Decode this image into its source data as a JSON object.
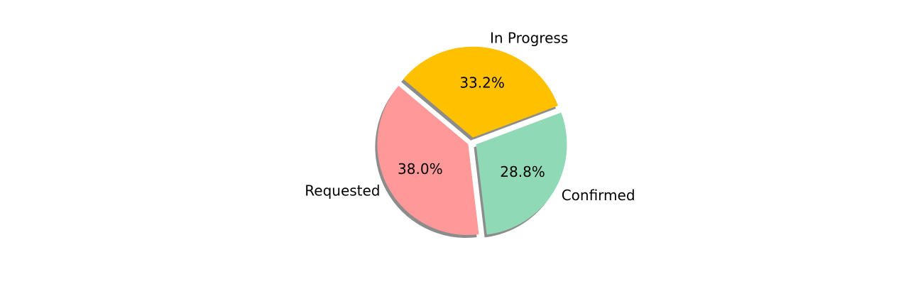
{
  "chart_data": {
    "type": "pie",
    "title": "",
    "slices": [
      {
        "label": "Requested",
        "percent": 38.0,
        "percent_label": "38.0%",
        "color": "#ff9999",
        "exploded": true
      },
      {
        "label": "Confirmed",
        "percent": 28.8,
        "percent_label": "28.8%",
        "color": "#8fd9b6",
        "exploded": true
      },
      {
        "label": "In Progress",
        "percent": 33.2,
        "percent_label": "33.2%",
        "color": "#ffc000",
        "exploded": true
      }
    ],
    "start_angle_deg": 140,
    "direction": "counterclockwise",
    "shadow": true
  }
}
